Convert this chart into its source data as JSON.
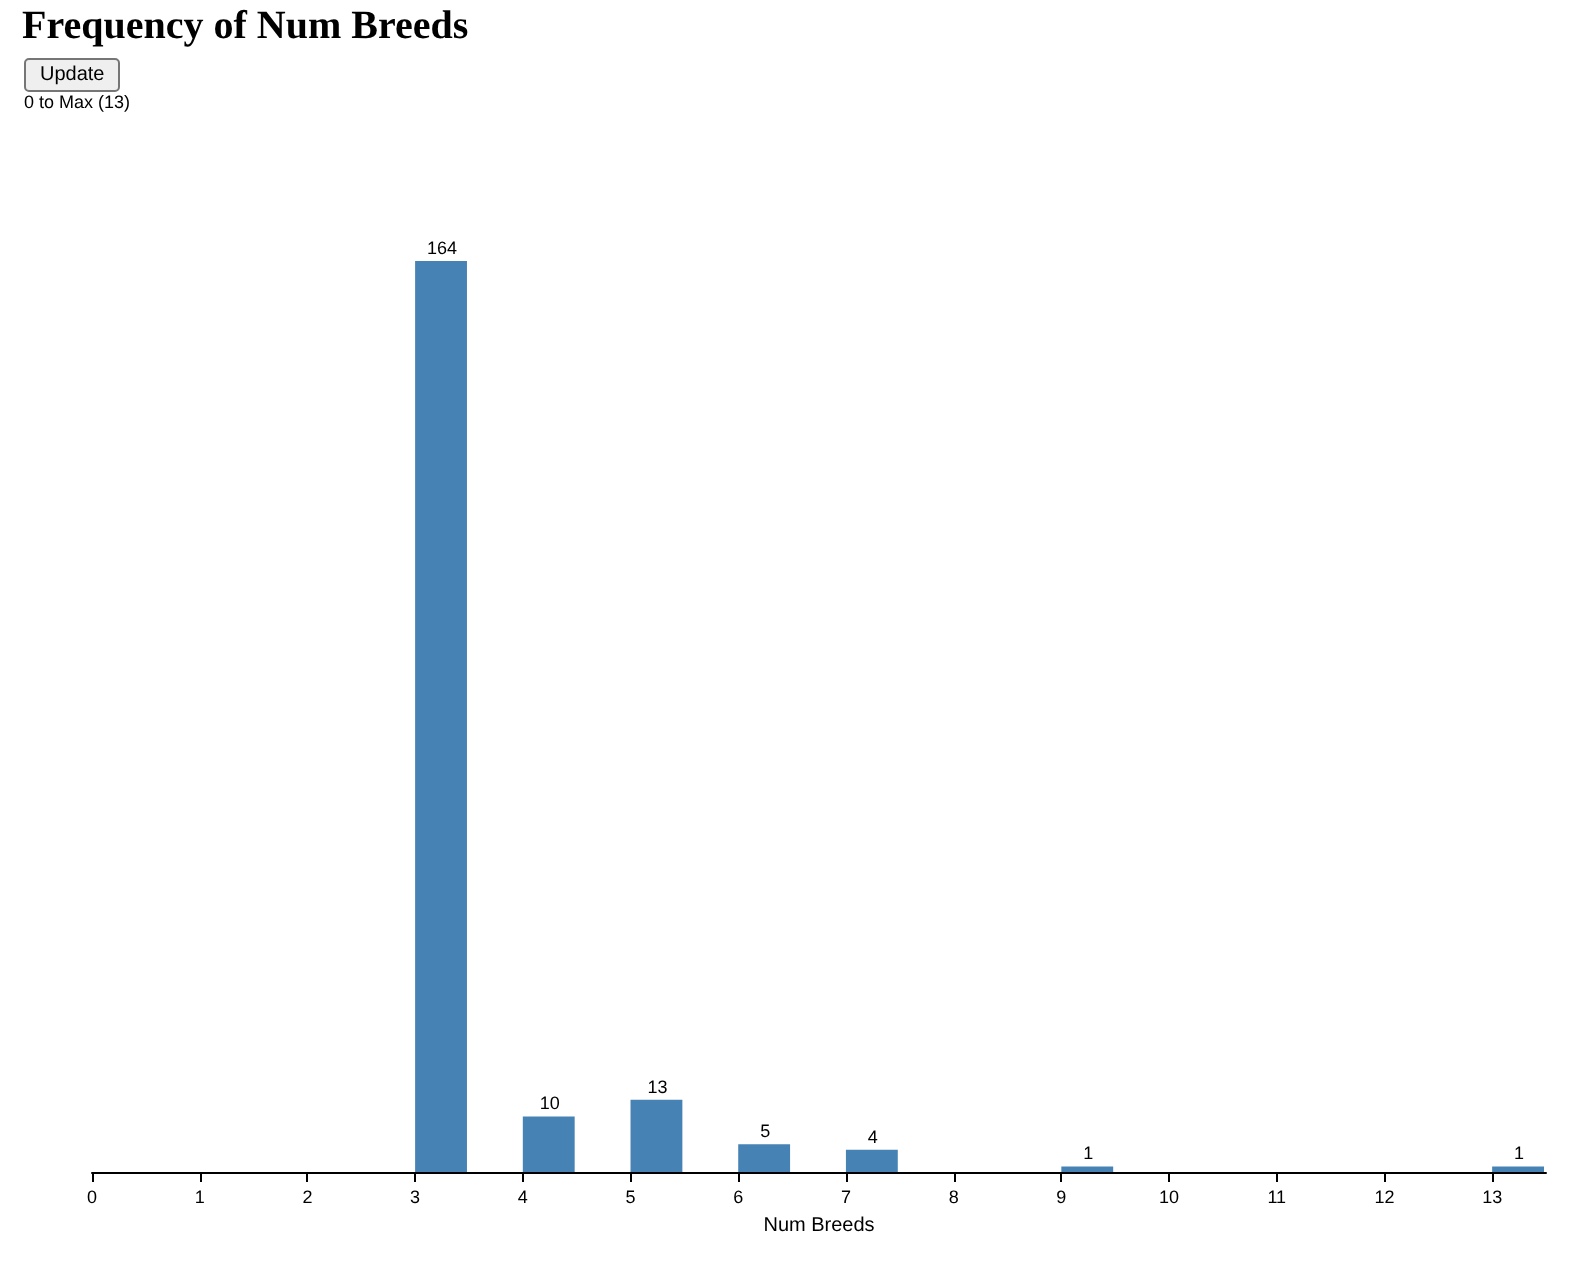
{
  "chart_data": {
    "type": "bar",
    "title": "Frequency of Num Breeds",
    "annotations": [
      "Update",
      "0 to Max (13)"
    ],
    "xlabel": "Num Breeds",
    "x": [
      3.25,
      4.25,
      5.25,
      6.25,
      7.25,
      9.25,
      13.25
    ],
    "values": [
      164,
      10,
      13,
      5,
      4,
      1,
      1
    ],
    "color": "#4682b4",
    "xlim": [
      0,
      13.5
    ],
    "xticks": [
      0,
      1,
      2,
      3,
      4,
      5,
      6,
      7,
      8,
      9,
      10,
      11,
      12,
      13
    ],
    "data_labels": true,
    "tick_labels": "x",
    "grid": false
  }
}
